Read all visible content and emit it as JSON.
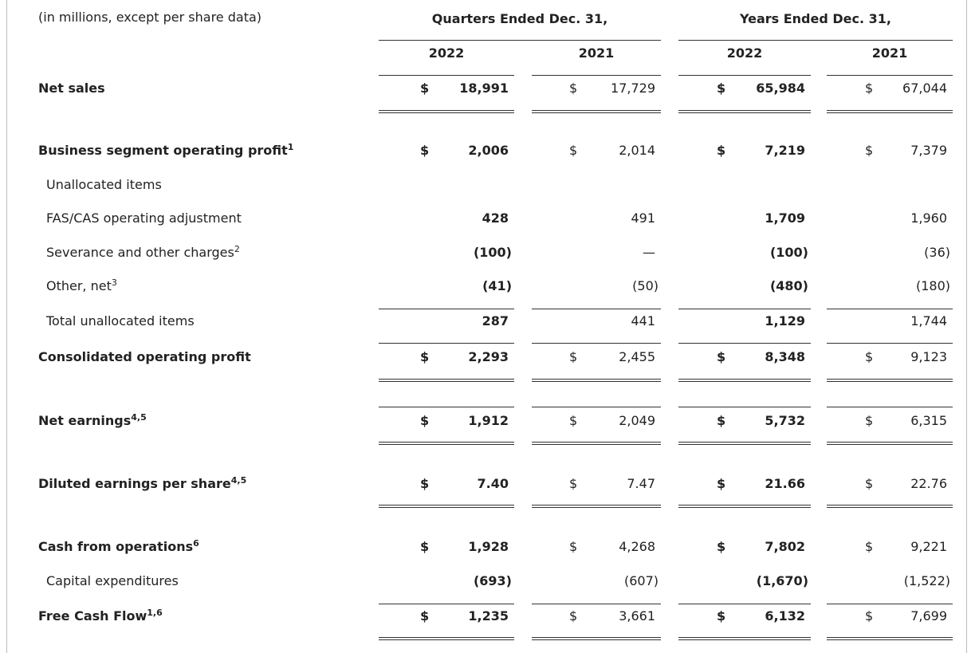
{
  "header": {
    "caption": "(in millions, except per share data)",
    "groups": [
      "Quarters Ended Dec. 31,",
      "Years Ended Dec. 31,"
    ],
    "years": [
      "2022",
      "2021",
      "2022",
      "2021"
    ]
  },
  "table": {
    "rows": [
      {
        "label": "Net sales",
        "cells": [
          {
            "currency": "$",
            "value": "18,991"
          },
          {
            "currency": "$",
            "value": "17,729"
          },
          {
            "currency": "$",
            "value": "65,984"
          },
          {
            "currency": "$",
            "value": "67,044"
          }
        ]
      },
      {
        "label": "Business segment operating profit",
        "note": "1",
        "cells": [
          {
            "currency": "$",
            "value": "2,006"
          },
          {
            "currency": "$",
            "value": "2,014"
          },
          {
            "currency": "$",
            "value": "7,219"
          },
          {
            "currency": "$",
            "value": "7,379"
          }
        ]
      },
      {
        "label": "Unallocated items"
      },
      {
        "label": "FAS/CAS operating adjustment",
        "cells": [
          {
            "value": "428"
          },
          {
            "value": "491"
          },
          {
            "value": "1,709"
          },
          {
            "value": "1,960"
          }
        ]
      },
      {
        "label": "Severance and other charges",
        "note": "2",
        "cells": [
          {
            "value": "(100)"
          },
          {
            "value": "—"
          },
          {
            "value": "(100)"
          },
          {
            "value": "(36)"
          }
        ]
      },
      {
        "label": "Other, net",
        "note": "3",
        "cells": [
          {
            "value": "(41)"
          },
          {
            "value": "(50)"
          },
          {
            "value": "(480)"
          },
          {
            "value": "(180)"
          }
        ]
      },
      {
        "label": "Total unallocated items",
        "cells": [
          {
            "value": "287"
          },
          {
            "value": "441"
          },
          {
            "value": "1,129"
          },
          {
            "value": "1,744"
          }
        ]
      },
      {
        "label": "Consolidated operating profit",
        "cells": [
          {
            "currency": "$",
            "value": "2,293"
          },
          {
            "currency": "$",
            "value": "2,455"
          },
          {
            "currency": "$",
            "value": "8,348"
          },
          {
            "currency": "$",
            "value": "9,123"
          }
        ]
      },
      {
        "label": "Net earnings",
        "note": "4,5",
        "cells": [
          {
            "currency": "$",
            "value": "1,912"
          },
          {
            "currency": "$",
            "value": "2,049"
          },
          {
            "currency": "$",
            "value": "5,732"
          },
          {
            "currency": "$",
            "value": "6,315"
          }
        ]
      },
      {
        "label": "Diluted earnings per share",
        "note": "4,5",
        "cells": [
          {
            "currency": "$",
            "value": "7.40"
          },
          {
            "currency": "$",
            "value": "7.47"
          },
          {
            "currency": "$",
            "value": "21.66"
          },
          {
            "currency": "$",
            "value": "22.76"
          }
        ]
      },
      {
        "label": "Cash from operations",
        "note": "6",
        "cells": [
          {
            "currency": "$",
            "value": "1,928"
          },
          {
            "currency": "$",
            "value": "4,268"
          },
          {
            "currency": "$",
            "value": "7,802"
          },
          {
            "currency": "$",
            "value": "9,221"
          }
        ]
      },
      {
        "label": "Capital expenditures",
        "cells": [
          {
            "value": "(693)"
          },
          {
            "value": "(607)"
          },
          {
            "value": "(1,670)"
          },
          {
            "value": "(1,522)"
          }
        ]
      },
      {
        "label": "Free Cash Flow",
        "note": "1,6",
        "cells": [
          {
            "currency": "$",
            "value": "1,235"
          },
          {
            "currency": "$",
            "value": "3,661"
          },
          {
            "currency": "$",
            "value": "6,132"
          },
          {
            "currency": "$",
            "value": "7,699"
          }
        ]
      }
    ]
  }
}
